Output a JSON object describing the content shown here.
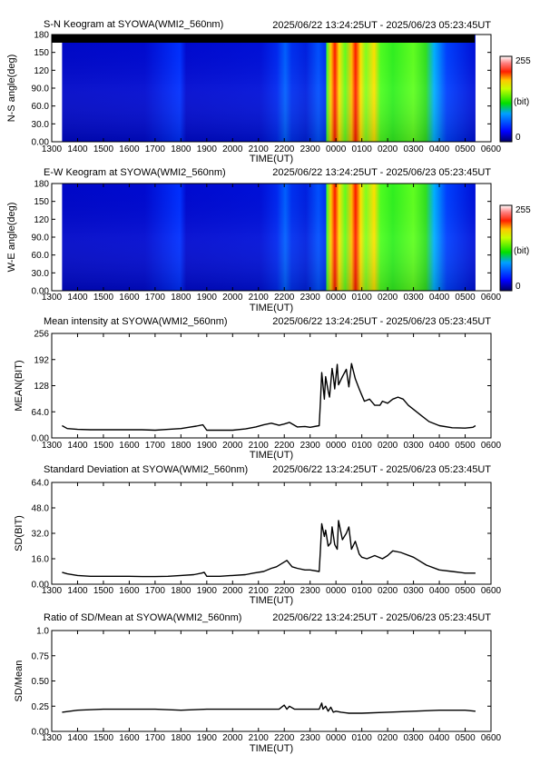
{
  "time_range": "2025/06/22 13:24:25UT - 2025/06/23 05:23:45UT",
  "x_ticks": [
    "1300",
    "1400",
    "1500",
    "1600",
    "1700",
    "1800",
    "1900",
    "2000",
    "2100",
    "2200",
    "2300",
    "0000",
    "0100",
    "0200",
    "0300",
    "0400",
    "0500",
    "0600"
  ],
  "x_label": "TIME(UT)",
  "colorbar": {
    "max_label": "255",
    "unit_label": "(bit)",
    "min_label": "0"
  },
  "chart_data": [
    {
      "type": "heatmap",
      "title": "S-N Keogram at SYOWA(WMI2_560nm)",
      "ylabel": "N-S angle(deg)",
      "yticks": [
        "0.00",
        "30.0",
        "60.0",
        "90.0",
        "120",
        "150",
        "180"
      ],
      "ylim": [
        0,
        180
      ],
      "color_scale": [
        0,
        255
      ]
    },
    {
      "type": "heatmap",
      "title": "E-W Keogram at SYOWA(WMI2_560nm)",
      "ylabel": "W-E angle(deg)",
      "yticks": [
        "0.00",
        "30.0",
        "60.0",
        "90.0",
        "120",
        "150",
        "180"
      ],
      "ylim": [
        0,
        180
      ],
      "color_scale": [
        0,
        255
      ]
    },
    {
      "type": "line",
      "title": "Mean intensity at SYOWA(WMI2_560nm)",
      "ylabel": "MEAN(BIT)",
      "yticks": [
        "0.00",
        "64.0",
        "128",
        "192",
        "256"
      ],
      "ylim": [
        0,
        256
      ],
      "xlim": [
        13,
        30
      ],
      "series": [
        {
          "x": [
            13.4,
            13.6,
            14,
            14.5,
            15,
            15.5,
            16,
            16.5,
            17,
            17.5,
            18,
            18.3,
            18.6,
            18.85,
            19.0,
            19.3,
            19.7,
            20.0,
            20.5,
            20.9,
            21.2,
            21.5,
            21.8,
            22.0,
            22.2,
            22.5,
            22.8,
            23.0,
            23.35,
            23.4,
            23.45,
            23.55,
            23.6,
            23.7,
            23.75,
            23.85,
            23.9,
            23.95,
            24.05,
            24.1,
            24.25,
            24.4,
            24.5,
            24.6,
            24.75,
            24.9,
            25.0,
            25.1,
            25.3,
            25.5,
            25.7,
            25.8,
            26.0,
            26.2,
            26.4,
            26.6,
            26.8,
            27.0,
            27.3,
            27.6,
            28.0,
            28.5,
            29.0,
            29.3,
            29.4
          ],
          "y": [
            30,
            23,
            21,
            20,
            20,
            20,
            20,
            20,
            19,
            21,
            23,
            26,
            29,
            32,
            19,
            19,
            19,
            19,
            22,
            27,
            32,
            36,
            31,
            34,
            38,
            27,
            28,
            26,
            30,
            90,
            160,
            95,
            150,
            115,
            100,
            170,
            150,
            120,
            180,
            130,
            150,
            168,
            125,
            182,
            145,
            120,
            105,
            90,
            95,
            80,
            80,
            90,
            85,
            95,
            100,
            95,
            80,
            70,
            55,
            40,
            30,
            25,
            24,
            26,
            30
          ]
        }
      ]
    },
    {
      "type": "line",
      "title": "Standard Deviation at SYOWA(WMI2_560nm)",
      "ylabel": "SD(BIT)",
      "yticks": [
        "0.00",
        "16.0",
        "32.0",
        "48.0",
        "64.0"
      ],
      "ylim": [
        0,
        64
      ],
      "xlim": [
        13,
        30
      ],
      "series": [
        {
          "x": [
            13.4,
            13.6,
            14,
            14.5,
            15,
            15.5,
            16,
            16.5,
            17,
            17.5,
            18,
            18.5,
            18.8,
            18.9,
            19.0,
            19.5,
            20.0,
            20.5,
            20.8,
            21.2,
            21.5,
            21.7,
            21.9,
            22.1,
            22.3,
            22.5,
            22.8,
            23.0,
            23.35,
            23.4,
            23.45,
            23.55,
            23.6,
            23.7,
            23.8,
            23.85,
            23.95,
            24.05,
            24.1,
            24.25,
            24.4,
            24.5,
            24.6,
            24.75,
            24.9,
            25.0,
            25.2,
            25.5,
            25.8,
            26.0,
            26.2,
            26.5,
            27.0,
            27.5,
            28.0,
            28.5,
            29.0,
            29.3,
            29.4
          ],
          "y": [
            7.5,
            6.5,
            5.5,
            5,
            5,
            5,
            5,
            4.8,
            4.8,
            5,
            5.5,
            6,
            7,
            7.5,
            5,
            5,
            5.5,
            6,
            7,
            8,
            10,
            11,
            13,
            15,
            11,
            10,
            9,
            9,
            8,
            22,
            38,
            30,
            34,
            24,
            26,
            36,
            25,
            22,
            40,
            28,
            32,
            36,
            22,
            27,
            19,
            17,
            16,
            18,
            16,
            18,
            21,
            20,
            17,
            12,
            9,
            8,
            7,
            7,
            7
          ]
        }
      ]
    },
    {
      "type": "line",
      "title": "Ratio of SD/Mean at SYOWA(WMI2_560nm)",
      "ylabel": "SD/Mean",
      "yticks": [
        "0.00",
        "0.25",
        "0.50",
        "0.75",
        "1.0"
      ],
      "ylim": [
        0,
        1
      ],
      "xlim": [
        13,
        30
      ],
      "series": [
        {
          "x": [
            13.4,
            14,
            15,
            16,
            17,
            18,
            19,
            20,
            21,
            21.8,
            22.0,
            22.1,
            22.2,
            22.4,
            23.0,
            23.35,
            23.45,
            23.5,
            23.6,
            23.7,
            23.8,
            23.9,
            24.0,
            24.2,
            24.5,
            25,
            26,
            27,
            28,
            29,
            29.4
          ],
          "y": [
            0.19,
            0.21,
            0.22,
            0.22,
            0.22,
            0.21,
            0.22,
            0.22,
            0.22,
            0.22,
            0.26,
            0.22,
            0.25,
            0.22,
            0.22,
            0.22,
            0.28,
            0.22,
            0.25,
            0.2,
            0.24,
            0.19,
            0.2,
            0.19,
            0.18,
            0.18,
            0.19,
            0.2,
            0.21,
            0.21,
            0.2
          ]
        }
      ]
    }
  ]
}
